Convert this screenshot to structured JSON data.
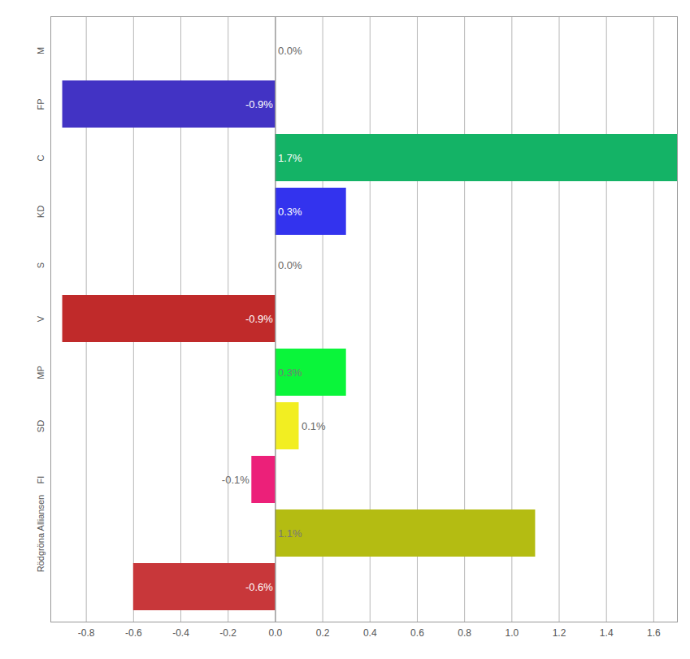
{
  "chart_data": {
    "type": "bar",
    "orientation": "horizontal",
    "categories": [
      "M",
      "FP",
      "C",
      "KD",
      "S",
      "V",
      "MP",
      "SD",
      "FI",
      "Rödgröna Alliansen",
      null
    ],
    "values": [
      0.0,
      -0.9,
      1.7,
      0.3,
      0.0,
      -0.9,
      0.3,
      0.1,
      -0.1,
      1.1,
      -0.6
    ],
    "value_labels": [
      "0.0%",
      "-0.9%",
      "1.7%",
      "0.3%",
      "0.0%",
      "-0.9%",
      "0.3%",
      "0.1%",
      "-0.1%",
      "1.1%",
      "-0.6%"
    ],
    "colors": [
      "#1b5cc4",
      "#4233c4",
      "#14b366",
      "#3333ee",
      "#e8112d",
      "#c02a2a",
      "#0af53a",
      "#f2ee22",
      "#ec2079",
      "#b4bc12",
      "#c8373a"
    ],
    "xlim": [
      -0.95,
      1.7
    ],
    "xticks": [
      -0.8,
      -0.6,
      -0.4,
      -0.2,
      {
        "value": 0,
        "label": "0.0"
      },
      0.2,
      0.4,
      0.6,
      0.8,
      {
        "value": 1,
        "label": "1.0"
      },
      1.2,
      1.4,
      1.6
    ],
    "grid": true,
    "data_labels": true
  }
}
